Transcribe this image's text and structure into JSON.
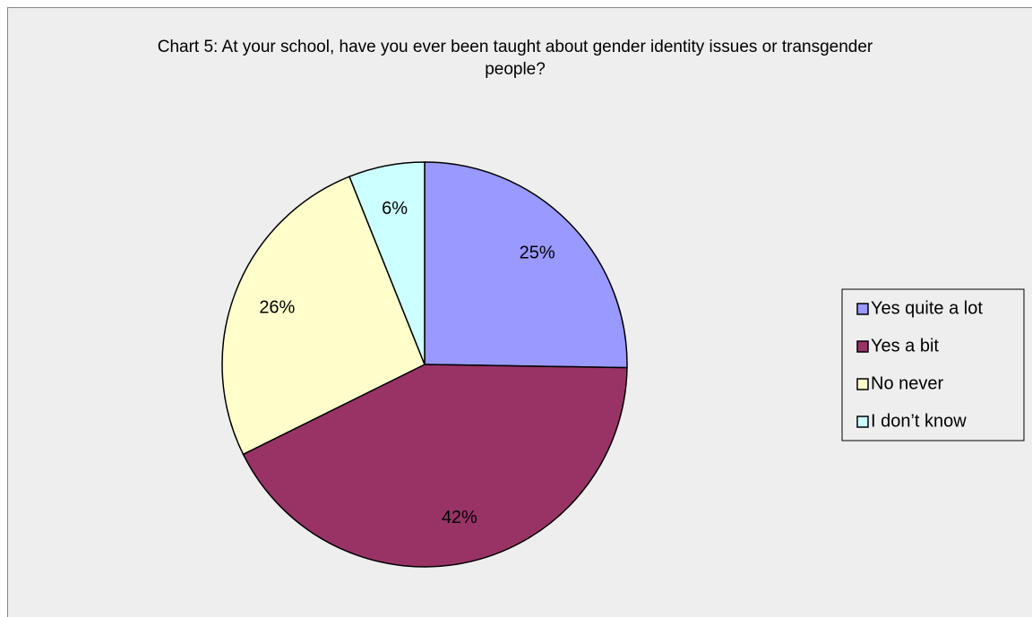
{
  "chart_data": {
    "type": "pie",
    "title": "Chart 5: At your school, have you ever been taught about gender identity issues or transgender people?",
    "categories": [
      "Yes quite a lot",
      "Yes a bit",
      "No never",
      "I don’t know"
    ],
    "values": [
      25,
      42,
      26,
      6
    ],
    "value_labels": [
      "25%",
      "42%",
      "26%",
      "6%"
    ],
    "colors": [
      "#9999ff",
      "#993366",
      "#ffffcc",
      "#ccffff"
    ],
    "legend": "right"
  }
}
